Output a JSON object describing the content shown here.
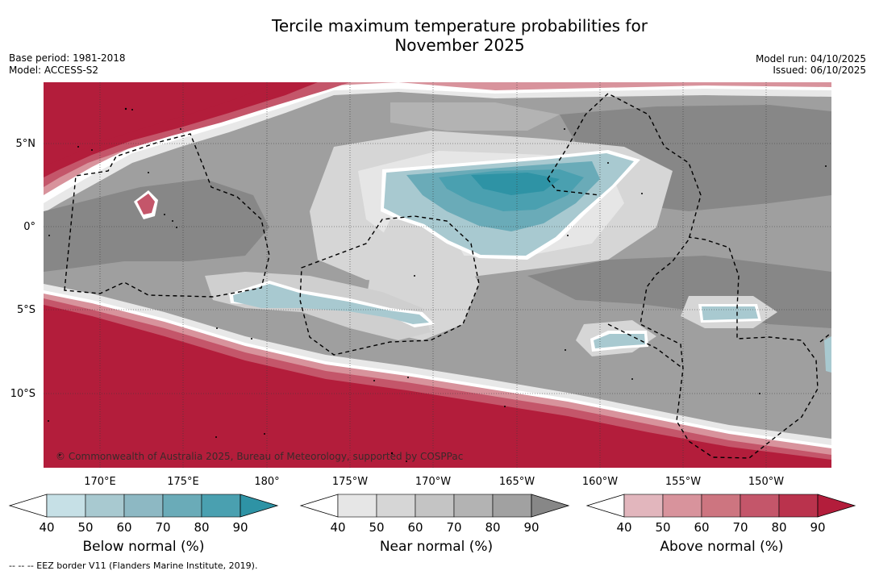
{
  "title": {
    "line1": "Tercile maximum temperature probabilities for",
    "line2": "November 2025"
  },
  "meta": {
    "base_period": "Base period: 1981-2018",
    "model": "Model: ACCESS-S2",
    "model_run": "Model run: 04/10/2025",
    "issued": "Issued: 06/10/2025"
  },
  "axes": {
    "lat_labels": [
      "5°N",
      "0°",
      "5°S",
      "10°S"
    ],
    "lon_labels": [
      "170°E",
      "175°E",
      "180°",
      "175°W",
      "170°W",
      "165°W",
      "160°W",
      "155°W",
      "150°W"
    ]
  },
  "credit": "© Commonwealth of Australia 2025, Bureau of Meteorology, supported by COSPPac",
  "legend": {
    "below": {
      "title": "Below normal (%)",
      "ticks": [
        "40",
        "50",
        "60",
        "70",
        "80",
        "90"
      ],
      "colors": [
        "#c6e0e6",
        "#a8c9d0",
        "#8db8c3",
        "#6aabb8",
        "#4aa0b0",
        "#2e93a5"
      ]
    },
    "near": {
      "title": "Near normal (%)",
      "ticks": [
        "40",
        "50",
        "60",
        "70",
        "80",
        "90"
      ],
      "colors": [
        "#e6e6e6",
        "#d6d6d6",
        "#c4c4c4",
        "#b3b3b3",
        "#a1a1a1",
        "#878787"
      ]
    },
    "above": {
      "title": "Above normal (%)",
      "ticks": [
        "40",
        "50",
        "60",
        "70",
        "80",
        "90"
      ],
      "colors": [
        "#e2b6bd",
        "#d8939c",
        "#cd7580",
        "#c4566a",
        "#ba334d",
        "#b31d3b"
      ]
    }
  },
  "footnote": "--  --  -- EEZ border V11 (Flanders Marine Institute, 2019)."
}
